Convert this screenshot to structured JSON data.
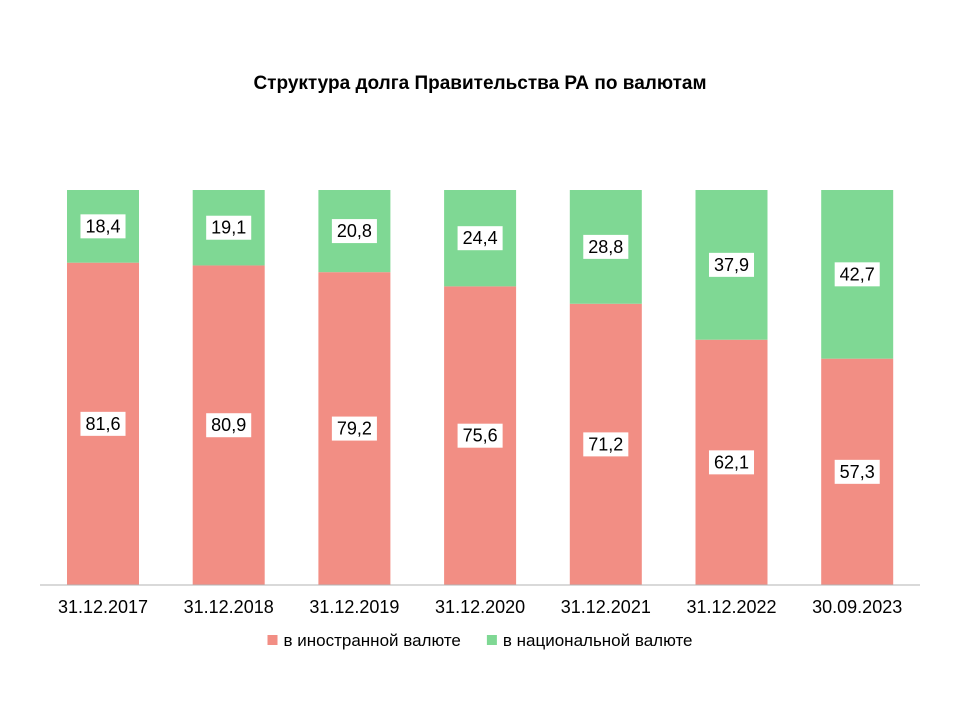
{
  "chart_data": {
    "type": "bar",
    "stacked": true,
    "title": "Структура долга Правительства РА по валютам",
    "categories": [
      "31.12.2017",
      "31.12.2018",
      "31.12.2019",
      "31.12.2020",
      "31.12.2021",
      "31.12.2022",
      "30.09.2023"
    ],
    "series": [
      {
        "name": "в иностранной валюте",
        "color": "#f28e84",
        "values": [
          81.6,
          80.9,
          79.2,
          75.6,
          71.2,
          62.1,
          57.3
        ],
        "labels": [
          "81,6",
          "80,9",
          "79,2",
          "75,6",
          "71,2",
          "62,1",
          "57,3"
        ]
      },
      {
        "name": "в национальной валюте",
        "color": "#7fd894",
        "values": [
          18.4,
          19.1,
          20.8,
          24.4,
          28.8,
          37.9,
          42.7
        ],
        "labels": [
          "18,4",
          "19,1",
          "20,8",
          "24,4",
          "28,8",
          "37,9",
          "42,7"
        ]
      }
    ],
    "ylim": [
      0,
      100
    ],
    "grid": false,
    "legend_position": "bottom",
    "label_background": "#ffffff",
    "axis_color": "#b3b3b3"
  }
}
